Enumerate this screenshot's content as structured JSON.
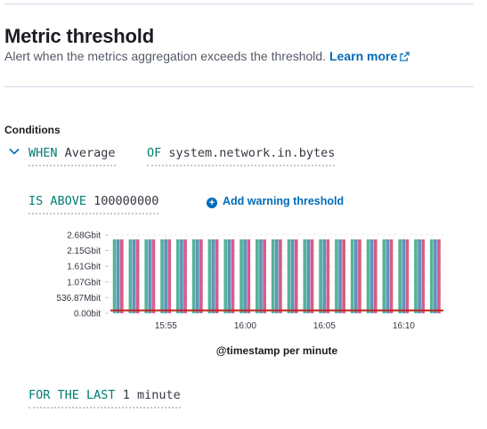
{
  "header": {
    "title": "Metric threshold",
    "subtitle": "Alert when the metrics aggregation exceeds the threshold.",
    "learn_more": "Learn more"
  },
  "conditions": {
    "label": "Conditions",
    "when_kw": "WHEN",
    "aggregation": "Average",
    "of_kw": "OF",
    "metric": "system.network.in.bytes",
    "comparator": "IS ABOVE",
    "threshold": "100000000",
    "add_warning": "Add warning threshold",
    "for_last_kw": "FOR THE LAST",
    "window": "1 minute"
  },
  "colors": {
    "teal": "#54b399",
    "blue": "#6092c0",
    "pink": "#d36086",
    "threshold": "#bd271e",
    "accent": "#006bb8",
    "keyword": "#017d73"
  },
  "chart_data": {
    "type": "bar",
    "xlabel": "@timestamp per minute",
    "ylabel": "",
    "y_ticks": [
      "2.68Gbit",
      "2.15Gbit",
      "1.61Gbit",
      "1.07Gbit",
      "536.87Mbit",
      "0.00bit"
    ],
    "y_tick_values": [
      2.68,
      2.15,
      1.61,
      1.07,
      0.53687,
      0
    ],
    "y_unit": "Gbit",
    "ylim": [
      0,
      2.68
    ],
    "x_ticks": [
      "15:55",
      "16:00",
      "16:05",
      "16:10"
    ],
    "x_tick_minutes": [
      955,
      960,
      965,
      970
    ],
    "x_range_minutes": [
      951.5,
      972.5
    ],
    "threshold_value": 0.1,
    "categories_minutes": [
      952,
      953,
      954,
      955,
      956,
      957,
      958,
      959,
      960,
      961,
      962,
      963,
      964,
      965,
      966,
      967,
      968,
      969,
      970,
      971,
      972
    ],
    "series_colors": [
      "#54b399",
      "#6092c0",
      "#d36086"
    ],
    "series": [
      {
        "values": [
          2.53,
          2.53,
          2.53,
          2.53,
          2.53,
          2.53,
          2.53,
          2.53,
          2.53,
          2.53,
          2.53,
          2.53,
          2.53,
          2.53,
          2.53,
          2.53,
          2.53,
          2.53,
          2.53,
          2.53,
          2.53
        ]
      },
      {
        "values": [
          2.53,
          2.53,
          2.53,
          2.53,
          2.53,
          2.53,
          2.53,
          2.53,
          2.53,
          2.53,
          2.53,
          2.53,
          2.53,
          2.53,
          2.53,
          2.53,
          2.53,
          2.53,
          2.53,
          2.53,
          2.53
        ]
      },
      {
        "values": [
          2.53,
          2.53,
          2.53,
          2.53,
          2.53,
          2.53,
          2.53,
          2.53,
          2.53,
          2.53,
          2.53,
          2.53,
          2.53,
          2.53,
          2.53,
          2.53,
          2.53,
          2.53,
          2.53,
          2.53,
          2.53
        ]
      }
    ]
  }
}
